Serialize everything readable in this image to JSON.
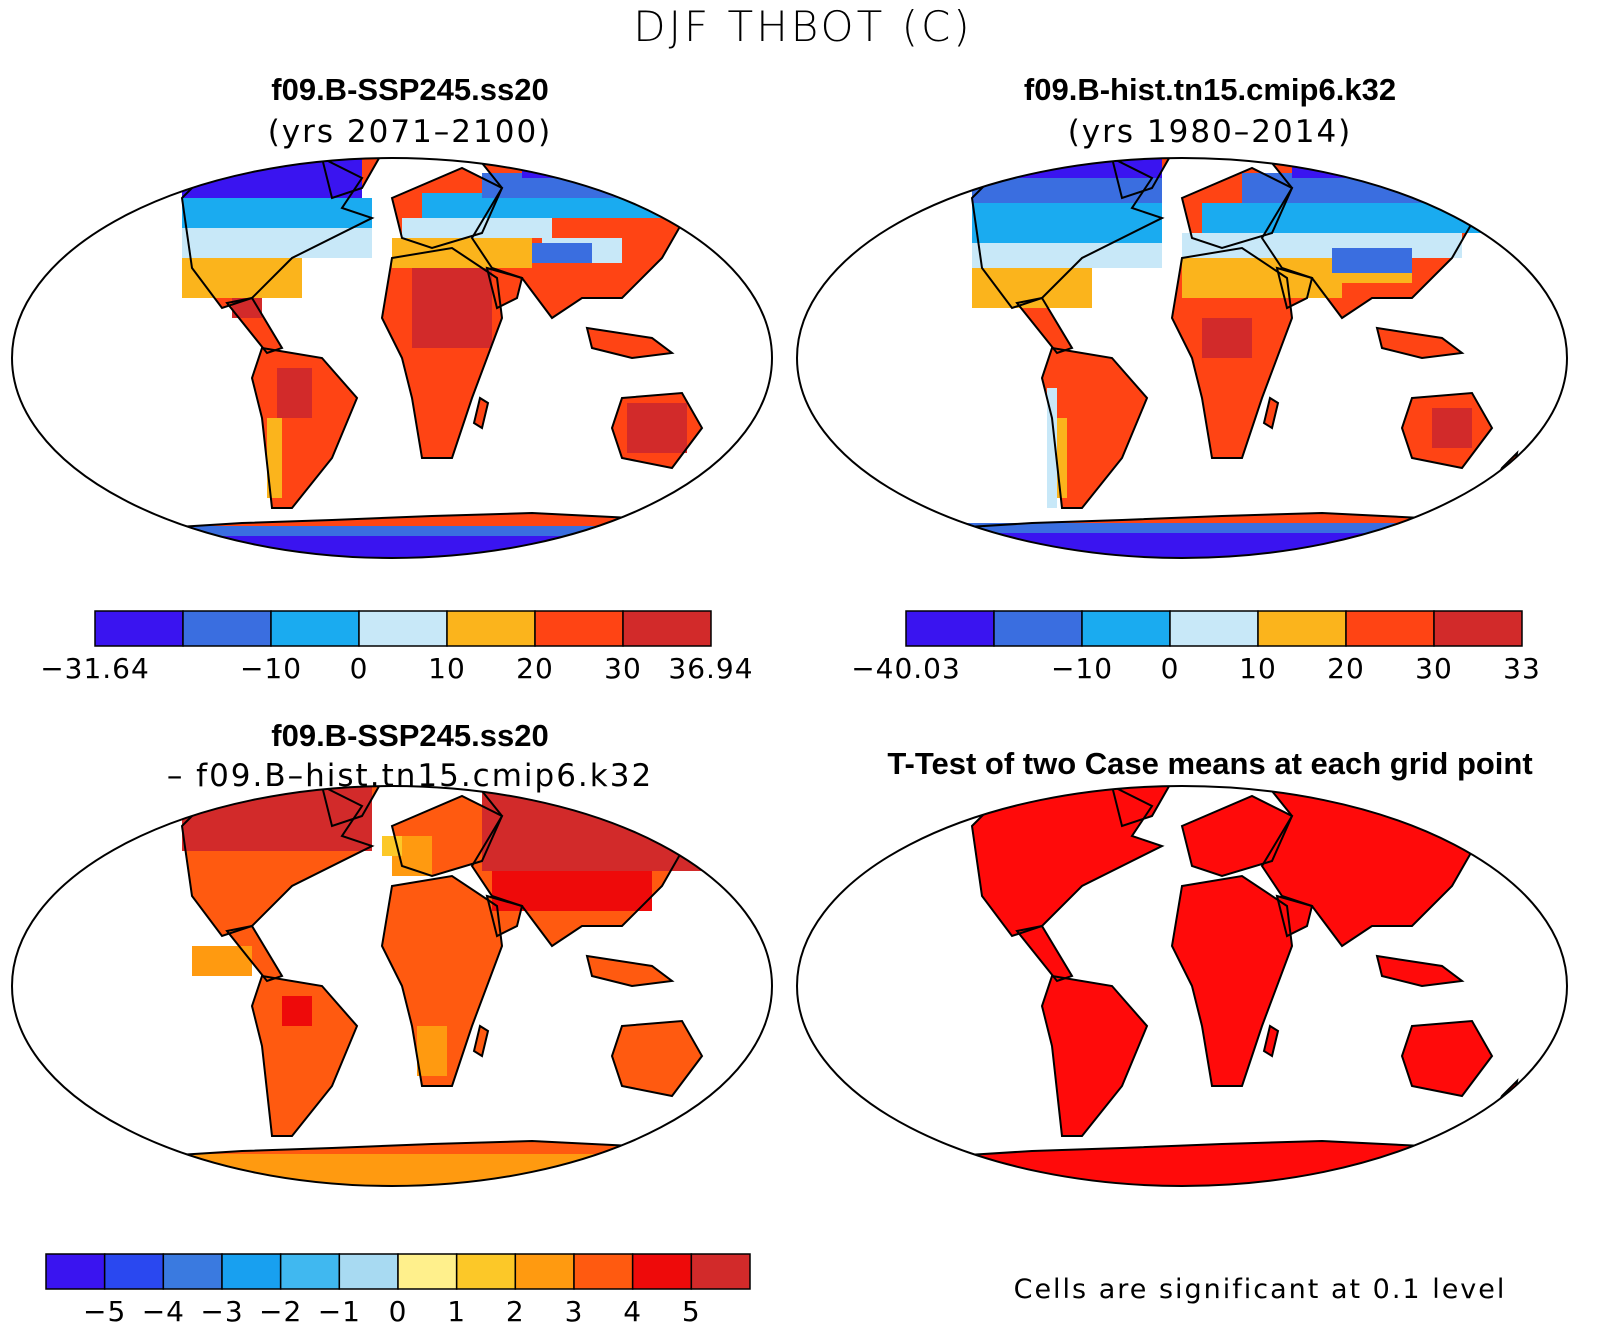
{
  "title": "DJF THBOT (C)",
  "colors": {
    "cb7": [
      "#3a14f0",
      "#3a6ee0",
      "#1aabf0",
      "#c8e8f8",
      "#fbb41c",
      "#ff4414",
      "#d22a2a"
    ],
    "cb12": [
      "#3a14f0",
      "#2a48f0",
      "#3a7ae0",
      "#18a0f0",
      "#40b8f0",
      "#a8daf2",
      "#fff08c",
      "#fcc828",
      "#ff9a10",
      "#ff5a10",
      "#ee0a0a",
      "#d22a2a"
    ],
    "ocean": "#ffffff",
    "coast": "#000000",
    "significant": "#ff0a0a"
  },
  "panels": [
    {
      "id": "future",
      "title": "f09.B-SSP245.ss20",
      "subtitle": "(yrs 2071–2100)",
      "colorbar": {
        "labels": [
          "−31.64",
          "−10",
          "0",
          "10",
          "20",
          "30",
          "36.94"
        ]
      }
    },
    {
      "id": "historical",
      "title": "f09.B-hist.tn15.cmip6.k32",
      "subtitle": "(yrs 1980–2014)",
      "colorbar": {
        "labels": [
          "−40.03",
          "−10",
          "0",
          "10",
          "20",
          "30",
          "33"
        ]
      }
    },
    {
      "id": "difference",
      "title": "f09.B-SSP245.ss20",
      "subtitle": "– f09.B–hist.tn15.cmip6.k32",
      "colorbar": {
        "labels": [
          "−5",
          "−4",
          "−3",
          "−2",
          "−1",
          "0",
          "1",
          "2",
          "3",
          "4",
          "5"
        ]
      }
    },
    {
      "id": "ttest",
      "title": "T-Test of two Case means at each grid point",
      "footnote": "Cells are significant at 0.1 level"
    }
  ]
}
